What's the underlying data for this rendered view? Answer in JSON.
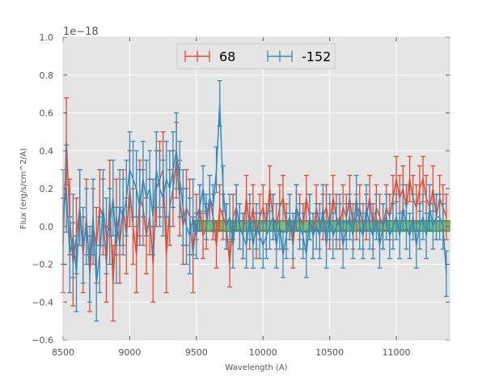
{
  "chart_data": {
    "type": "line",
    "title": "",
    "xlabel": "Wavelength (A)",
    "ylabel": "Flux (erg/s/cm^2/A)",
    "y_offset_label": "1e−18",
    "xlim": [
      8500,
      11400
    ],
    "ylim": [
      -0.6,
      1.0
    ],
    "x_ticks": [
      8500,
      9000,
      9500,
      10000,
      10500,
      11000
    ],
    "x_tick_labels": [
      "8500",
      "9000",
      "9500",
      "10000",
      "10500",
      "11000"
    ],
    "y_ticks": [
      -0.6,
      -0.4,
      -0.2,
      0.0,
      0.2,
      0.4,
      0.6,
      0.8,
      1.0
    ],
    "y_tick_labels": [
      "−0.6",
      "−0.4",
      "−0.2",
      "0.0",
      "0.2",
      "0.4",
      "0.6",
      "0.8",
      "1.0"
    ],
    "grid": true,
    "legend_position": "top-center",
    "error_bars": true,
    "x": [
      8500,
      8525,
      8550,
      8575,
      8600,
      8625,
      8650,
      8675,
      8700,
      8725,
      8750,
      8775,
      8800,
      8825,
      8850,
      8875,
      8900,
      8925,
      8950,
      8975,
      9000,
      9025,
      9050,
      9075,
      9100,
      9125,
      9150,
      9175,
      9200,
      9225,
      9250,
      9275,
      9300,
      9325,
      9350,
      9375,
      9400,
      9425,
      9450,
      9475,
      9500,
      9525,
      9550,
      9575,
      9600,
      9625,
      9650,
      9675,
      9700,
      9725,
      9750,
      9775,
      9800,
      9825,
      9850,
      9875,
      9900,
      9925,
      9950,
      9975,
      10000,
      10025,
      10050,
      10075,
      10100,
      10125,
      10150,
      10175,
      10200,
      10225,
      10250,
      10275,
      10300,
      10325,
      10350,
      10375,
      10400,
      10425,
      10450,
      10475,
      10500,
      10525,
      10550,
      10575,
      10600,
      10625,
      10650,
      10675,
      10700,
      10725,
      10750,
      10775,
      10800,
      10825,
      10850,
      10875,
      10900,
      10925,
      10950,
      10975,
      11000,
      11025,
      11050,
      11075,
      11100,
      11125,
      11150,
      11175,
      11200,
      11225,
      11250,
      11275,
      11300,
      11325,
      11350,
      11375
    ],
    "series": [
      {
        "name": "68",
        "color": "#e24a33",
        "values": [
          -0.1,
          0.45,
          0.05,
          -0.2,
          -0.05,
          0.1,
          -0.15,
          0.05,
          -0.25,
          0.0,
          -0.1,
          0.1,
          0.05,
          -0.2,
          0.15,
          -0.3,
          0.05,
          -0.1,
          0.1,
          -0.05,
          0.2,
          0.0,
          -0.15,
          0.15,
          0.1,
          -0.05,
          0.05,
          -0.2,
          0.2,
          0.25,
          0.3,
          -0.15,
          0.1,
          0.2,
          0.35,
          0.15,
          0.0,
          0.1,
          0.05,
          -0.15,
          0.05,
          0.1,
          -0.05,
          0.0,
          0.15,
          0.05,
          -0.1,
          0.1,
          0.05,
          0.0,
          -0.2,
          0.05,
          0.1,
          0.0,
          -0.05,
          0.15,
          0.0,
          0.1,
          -0.05,
          0.05,
          0.1,
          0.0,
          0.2,
          0.05,
          0.0,
          0.1,
          0.15,
          0.0,
          0.05,
          -0.1,
          0.1,
          0.05,
          0.0,
          0.15,
          0.05,
          -0.05,
          0.1,
          0.0,
          0.05,
          0.1,
          0.0,
          0.15,
          0.05,
          0.0,
          0.1,
          0.05,
          0.15,
          0.0,
          0.05,
          0.1,
          0.0,
          0.05,
          0.15,
          0.0,
          0.1,
          0.05,
          0.0,
          0.1,
          0.05,
          0.15,
          0.25,
          0.15,
          0.2,
          0.1,
          0.25,
          0.15,
          0.1,
          0.2,
          0.25,
          0.15,
          0.1,
          0.2,
          0.05,
          0.15,
          0.1,
          0.05
        ],
        "errors": [
          0.25,
          0.23,
          0.2,
          0.22,
          0.2,
          0.2,
          0.2,
          0.2,
          0.2,
          0.2,
          0.2,
          0.2,
          0.2,
          0.2,
          0.2,
          0.2,
          0.2,
          0.2,
          0.2,
          0.2,
          0.2,
          0.2,
          0.2,
          0.2,
          0.2,
          0.2,
          0.2,
          0.2,
          0.2,
          0.2,
          0.2,
          0.2,
          0.2,
          0.2,
          0.2,
          0.2,
          0.2,
          0.2,
          0.2,
          0.2,
          0.12,
          0.12,
          0.12,
          0.12,
          0.12,
          0.12,
          0.12,
          0.12,
          0.12,
          0.12,
          0.12,
          0.12,
          0.12,
          0.12,
          0.12,
          0.12,
          0.12,
          0.12,
          0.12,
          0.12,
          0.12,
          0.12,
          0.12,
          0.12,
          0.12,
          0.12,
          0.12,
          0.12,
          0.12,
          0.12,
          0.12,
          0.12,
          0.12,
          0.12,
          0.12,
          0.12,
          0.12,
          0.12,
          0.12,
          0.12,
          0.12,
          0.12,
          0.12,
          0.12,
          0.12,
          0.12,
          0.12,
          0.12,
          0.12,
          0.12,
          0.12,
          0.12,
          0.12,
          0.12,
          0.12,
          0.12,
          0.12,
          0.12,
          0.12,
          0.12,
          0.12,
          0.12,
          0.12,
          0.12,
          0.12,
          0.12,
          0.12,
          0.12,
          0.12,
          0.12,
          0.12,
          0.12,
          0.12,
          0.12,
          0.12,
          0.12
        ]
      },
      {
        "name": "-152",
        "color": "#348abd",
        "values": [
          0.05,
          0.2,
          -0.15,
          -0.05,
          -0.25,
          0.1,
          -0.1,
          0.0,
          -0.2,
          0.05,
          -0.3,
          -0.15,
          0.1,
          -0.05,
          0.0,
          0.15,
          -0.1,
          0.1,
          0.05,
          0.15,
          0.3,
          0.25,
          0.2,
          0.1,
          0.25,
          0.15,
          0.2,
          0.05,
          0.3,
          0.2,
          0.15,
          0.25,
          0.2,
          0.3,
          0.4,
          0.25,
          0.1,
          0.0,
          -0.05,
          0.05,
          -0.05,
          0.1,
          0.2,
          0.05,
          0.15,
          0.1,
          0.3,
          0.65,
          0.2,
          0.0,
          0.05,
          -0.1,
          0.1,
          0.0,
          -0.05,
          -0.1,
          0.05,
          -0.1,
          0.0,
          -0.05,
          -0.1,
          -0.05,
          0.0,
          0.05,
          -0.1,
          0.0,
          -0.15,
          -0.05,
          0.05,
          -0.05,
          0.1,
          0.0,
          -0.05,
          -0.15,
          0.05,
          -0.05,
          0.0,
          -0.05,
          0.1,
          -0.1,
          0.05,
          -0.05,
          0.0,
          0.05,
          -0.1,
          0.0,
          0.05,
          -0.05,
          0.15,
          0.0,
          -0.05,
          0.1,
          0.0,
          -0.05,
          0.05,
          -0.1,
          0.0,
          0.05,
          -0.05,
          0.0,
          0.05,
          -0.05,
          0.1,
          0.0,
          -0.05,
          0.05,
          -0.1,
          0.0,
          0.05,
          -0.05,
          0.1,
          0.0,
          0.05,
          0.05,
          0.0,
          -0.25
        ],
        "errors": [
          0.25,
          0.23,
          0.2,
          0.22,
          0.2,
          0.2,
          0.2,
          0.2,
          0.2,
          0.2,
          0.2,
          0.2,
          0.2,
          0.2,
          0.2,
          0.2,
          0.2,
          0.2,
          0.2,
          0.2,
          0.2,
          0.2,
          0.2,
          0.2,
          0.2,
          0.2,
          0.2,
          0.2,
          0.2,
          0.2,
          0.2,
          0.2,
          0.2,
          0.2,
          0.2,
          0.2,
          0.2,
          0.2,
          0.2,
          0.2,
          0.12,
          0.12,
          0.12,
          0.12,
          0.12,
          0.12,
          0.12,
          0.12,
          0.12,
          0.12,
          0.12,
          0.12,
          0.12,
          0.12,
          0.12,
          0.12,
          0.12,
          0.12,
          0.12,
          0.12,
          0.12,
          0.12,
          0.12,
          0.12,
          0.12,
          0.12,
          0.12,
          0.12,
          0.12,
          0.12,
          0.12,
          0.12,
          0.12,
          0.12,
          0.12,
          0.12,
          0.12,
          0.12,
          0.12,
          0.12,
          0.12,
          0.12,
          0.12,
          0.12,
          0.12,
          0.12,
          0.12,
          0.12,
          0.12,
          0.12,
          0.12,
          0.12,
          0.12,
          0.12,
          0.12,
          0.12,
          0.12,
          0.12,
          0.12,
          0.12,
          0.12,
          0.12,
          0.12,
          0.12,
          0.12,
          0.12,
          0.12,
          0.12,
          0.12,
          0.12,
          0.12,
          0.12,
          0.12,
          0.12,
          0.12,
          0.12
        ]
      }
    ],
    "band": {
      "x_start": 9475,
      "x_end": 11400,
      "y_low": -0.025,
      "y_high": 0.03,
      "color": "#2ca02c"
    }
  }
}
